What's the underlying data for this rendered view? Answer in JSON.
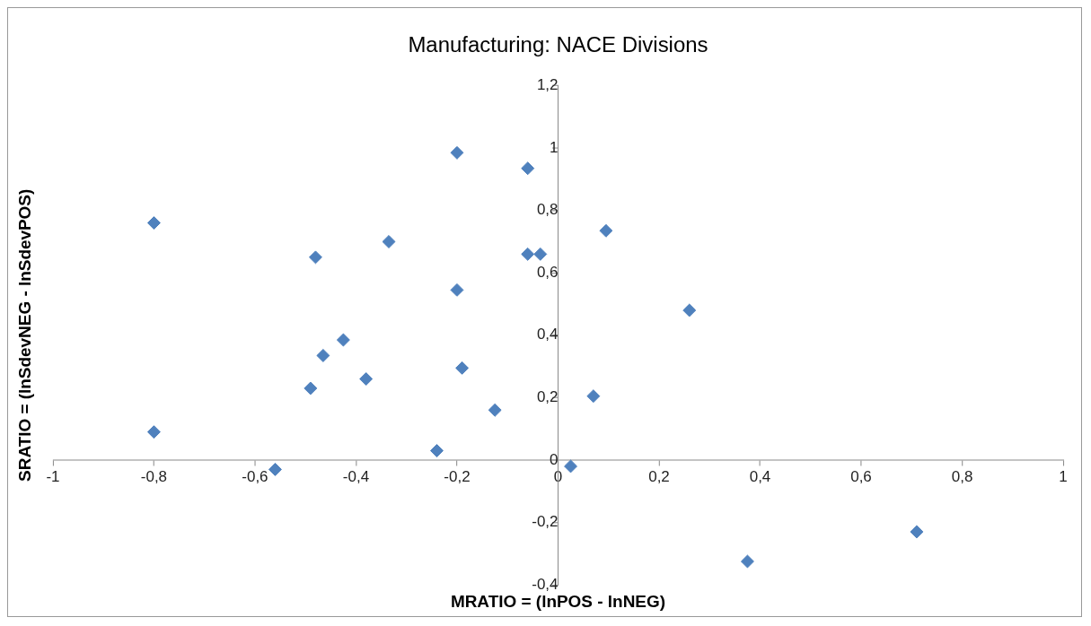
{
  "chart_data": {
    "type": "scatter",
    "title": "Manufacturing: NACE Divisions",
    "xlabel": "MRATIO = (lnPOS - lnNEG)",
    "ylabel": "SRATIO = (lnSdevNEG - lnSdevPOS)",
    "marker": "diamond",
    "grid": false,
    "legend": false,
    "x": [
      -0.8,
      -0.8,
      -0.56,
      -0.49,
      -0.48,
      -0.465,
      -0.425,
      -0.38,
      -0.335,
      -0.24,
      -0.2,
      -0.2,
      -0.19,
      -0.125,
      -0.06,
      -0.06,
      -0.035,
      0.025,
      0.07,
      0.095,
      0.26,
      0.375,
      0.71
    ],
    "series": [
      {
        "color": "#4f81bd",
        "values": [
          0.76,
          0.09,
          -0.03,
          0.23,
          0.65,
          0.335,
          0.385,
          0.26,
          0.7,
          0.03,
          0.985,
          0.545,
          0.295,
          0.16,
          0.935,
          0.66,
          0.66,
          -0.02,
          0.205,
          0.735,
          0.48,
          -0.325,
          -0.23
        ]
      }
    ],
    "xlim": [
      -1,
      1
    ],
    "ylim": [
      -0.4,
      1.2
    ],
    "xticks": [
      -1,
      {
        "value": -0.8,
        "label": "-0,8"
      },
      {
        "value": -0.6,
        "label": "-0,6"
      },
      {
        "value": -0.4,
        "label": "-0,4"
      },
      {
        "value": -0.2,
        "label": "-0,2"
      },
      0,
      {
        "value": 0.2,
        "label": "0,2"
      },
      {
        "value": 0.4,
        "label": "0,4"
      },
      {
        "value": 0.6,
        "label": "0,6"
      },
      {
        "value": 0.8,
        "label": "0,8"
      },
      1
    ],
    "yticks": [
      {
        "value": -0.4,
        "label": "-0,4"
      },
      {
        "value": -0.2,
        "label": "-0,2"
      },
      0,
      {
        "value": 0.2,
        "label": "0,2"
      },
      {
        "value": 0.4,
        "label": "0,4"
      },
      {
        "value": 0.6,
        "label": "0,6"
      },
      {
        "value": 0.8,
        "label": "0,8"
      },
      1,
      {
        "value": 1.2,
        "label": "1,2"
      }
    ]
  }
}
